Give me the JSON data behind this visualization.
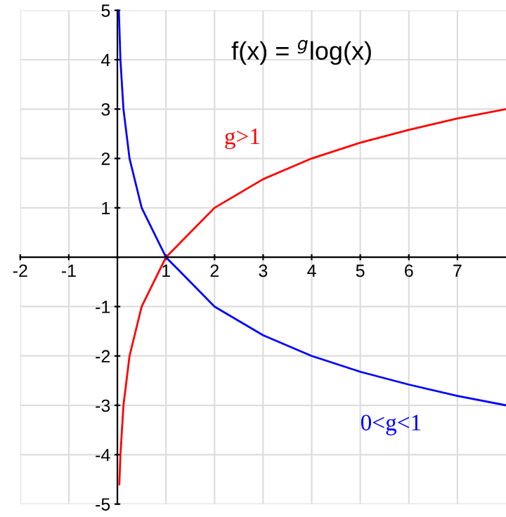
{
  "chart_data": {
    "type": "line",
    "title": "f(x) = $^{g}$log(x)",
    "series": [
      {
        "name": "g>1",
        "color": "#ff0000",
        "x": [
          0.04,
          0.0625,
          0.125,
          0.25,
          0.5,
          1,
          2,
          3,
          4,
          5,
          6,
          7,
          8
        ],
        "values": [
          -4.6,
          -4,
          -3,
          -2,
          -1,
          0,
          1,
          1.58,
          2,
          2.32,
          2.58,
          2.81,
          3
        ]
      },
      {
        "name": "0<g<1",
        "color": "#0000ff",
        "x": [
          0.03,
          0.0625,
          0.125,
          0.25,
          0.5,
          1,
          2,
          3,
          4,
          5,
          6,
          7,
          8
        ],
        "values": [
          5,
          4,
          3,
          2,
          1,
          0,
          -1,
          -1.58,
          -2,
          -2.32,
          -2.58,
          -2.81,
          -3
        ]
      }
    ],
    "xlim": [
      -2,
      8
    ],
    "ylim": [
      -5,
      5
    ],
    "xticks": [
      -2,
      -1,
      1,
      2,
      3,
      4,
      5,
      6,
      7
    ],
    "yticks": [
      -5,
      -4,
      -3,
      -2,
      -1,
      {
        "value": 0,
        "label": null
      },
      1,
      2,
      3,
      4,
      5
    ],
    "grid": true,
    "legend": false,
    "marker": "none",
    "line_style": "solid"
  }
}
